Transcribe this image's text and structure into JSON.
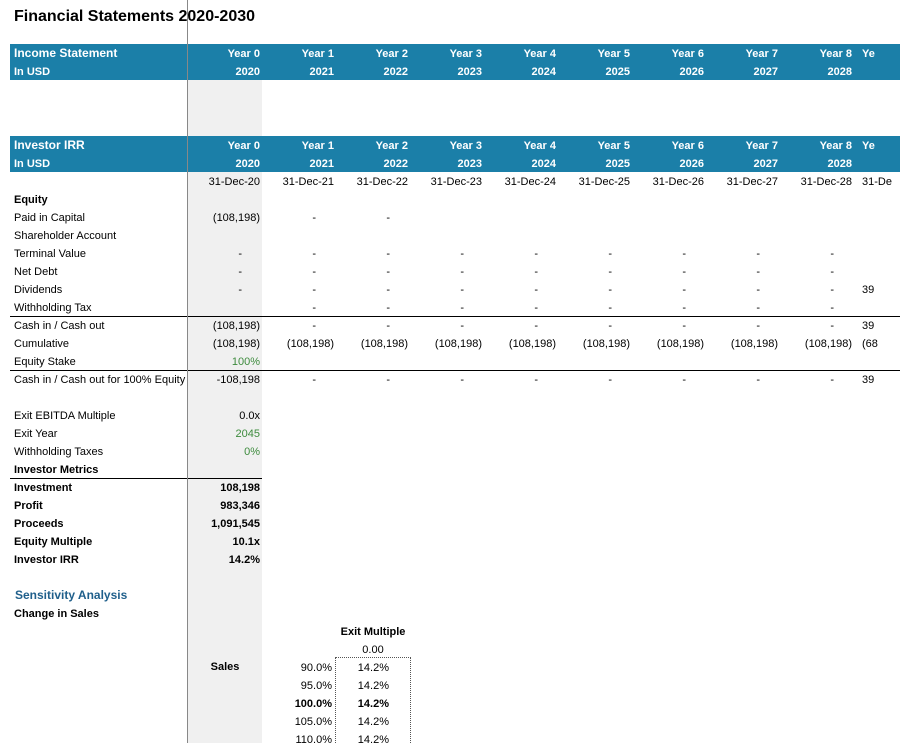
{
  "title": "Financial Statements 2020-2030",
  "income_header": {
    "label": "Income Statement",
    "unit": "In USD",
    "years": [
      "Year 0",
      "Year 1",
      "Year 2",
      "Year 3",
      "Year 4",
      "Year 5",
      "Year 6",
      "Year 7",
      "Year 8",
      "Ye"
    ],
    "fiscal_years": [
      "2020",
      "2021",
      "2022",
      "2023",
      "2024",
      "2025",
      "2026",
      "2027",
      "2028"
    ]
  },
  "investor_header": {
    "label": "Investor IRR",
    "unit": "In USD",
    "years": [
      "Year 0",
      "Year 1",
      "Year 2",
      "Year 3",
      "Year 4",
      "Year 5",
      "Year 6",
      "Year 7",
      "Year 8",
      "Ye"
    ],
    "fiscal_years": [
      "2020",
      "2021",
      "2022",
      "2023",
      "2024",
      "2025",
      "2026",
      "2027",
      "2028"
    ],
    "dates": [
      "31-Dec-20",
      "31-Dec-21",
      "31-Dec-22",
      "31-Dec-23",
      "31-Dec-24",
      "31-Dec-25",
      "31-Dec-26",
      "31-Dec-27",
      "31-Dec-28",
      "31-De"
    ]
  },
  "equity_section": {
    "heading": "Equity",
    "rows": [
      {
        "label": "Paid in Capital",
        "values": [
          "(108,198)",
          "-",
          "-",
          null,
          null,
          null,
          null,
          null,
          null,
          null
        ]
      },
      {
        "label": "Shareholder Account"
      },
      {
        "label": "Terminal Value",
        "values": [
          "-",
          "-",
          "-",
          "-",
          "-",
          "-",
          "-",
          "-",
          "-",
          null
        ]
      },
      {
        "label": "Net Debt",
        "values": [
          "-",
          "-",
          "-",
          "-",
          "-",
          "-",
          "-",
          "-",
          "-",
          null
        ]
      },
      {
        "label": "Dividends",
        "values": [
          "-",
          "-",
          "-",
          "-",
          "-",
          "-",
          "-",
          "-",
          "-",
          "39"
        ]
      },
      {
        "label": "Withholding Tax",
        "values": [
          null,
          "-",
          "-",
          "-",
          "-",
          "-",
          "-",
          "-",
          "-",
          null
        ]
      },
      {
        "label": "Cash in / Cash out",
        "values": [
          "(108,198)",
          "-",
          "-",
          "-",
          "-",
          "-",
          "-",
          "-",
          "-",
          "39"
        ]
      },
      {
        "label": "Cumulative",
        "values": [
          "(108,198)",
          "(108,198)",
          "(108,198)",
          "(108,198)",
          "(108,198)",
          "(108,198)",
          "(108,198)",
          "(108,198)",
          "(108,198)",
          "(68"
        ]
      },
      {
        "label": "Equity Stake",
        "values": [
          "100%",
          null,
          null,
          null,
          null,
          null,
          null,
          null,
          null,
          null
        ],
        "color": "#3d8b3d"
      },
      {
        "label": "Cash in / Cash out for 100% Equity",
        "values": [
          "-108,198",
          "-",
          "-",
          "-",
          "-",
          "-",
          "-",
          "-",
          "-",
          "39"
        ]
      }
    ]
  },
  "exit_assumptions": [
    {
      "label": "Exit EBITDA Multiple",
      "value": "0.0x"
    },
    {
      "label": "Exit Year",
      "value": "2045",
      "color": "#3d8b3d"
    },
    {
      "label": "Withholding Taxes",
      "value": "0%",
      "color": "#3d8b3d"
    }
  ],
  "investor_metrics": {
    "heading": "Investor Metrics",
    "rows": [
      {
        "label": "Investment",
        "value": "108,198"
      },
      {
        "label": "Profit",
        "value": "983,346"
      },
      {
        "label": "Proceeds",
        "value": "1,091,545"
      },
      {
        "label": "Equity Multiple",
        "value": "10.1x"
      },
      {
        "label": "Investor IRR",
        "value": "14.2%"
      }
    ]
  },
  "sensitivity": {
    "title": "Sensitivity Analysis",
    "subtitle": "Change in Sales",
    "column_header": "Exit Multiple",
    "column_value": "0.00",
    "row_header": "Sales",
    "rows": [
      {
        "label": "90.0%",
        "value": "14.2%"
      },
      {
        "label": "95.0%",
        "value": "14.2%"
      },
      {
        "label": "100.0%",
        "value": "14.2%"
      },
      {
        "label": "105.0%",
        "value": "14.2%"
      },
      {
        "label": "110.0%",
        "value": "14.2%"
      }
    ]
  }
}
